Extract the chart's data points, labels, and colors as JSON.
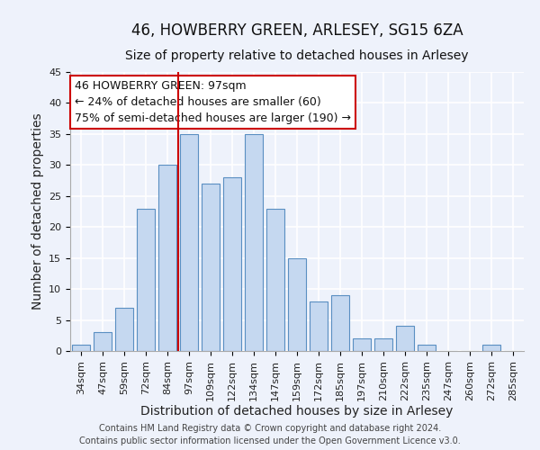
{
  "title": "46, HOWBERRY GREEN, ARLESEY, SG15 6ZA",
  "subtitle": "Size of property relative to detached houses in Arlesey",
  "xlabel": "Distribution of detached houses by size in Arlesey",
  "ylabel": "Number of detached properties",
  "bar_labels": [
    "34sqm",
    "47sqm",
    "59sqm",
    "72sqm",
    "84sqm",
    "97sqm",
    "109sqm",
    "122sqm",
    "134sqm",
    "147sqm",
    "159sqm",
    "172sqm",
    "185sqm",
    "197sqm",
    "210sqm",
    "222sqm",
    "235sqm",
    "247sqm",
    "260sqm",
    "272sqm",
    "285sqm"
  ],
  "bar_values": [
    1,
    3,
    7,
    23,
    30,
    35,
    27,
    28,
    35,
    23,
    15,
    8,
    9,
    2,
    2,
    4,
    1,
    0,
    0,
    1,
    0
  ],
  "bar_color": "#c5d8f0",
  "bar_edge_color": "#5a8fc2",
  "vline_index": 5,
  "vline_color": "#cc0000",
  "ylim": [
    0,
    45
  ],
  "yticks": [
    0,
    5,
    10,
    15,
    20,
    25,
    30,
    35,
    40,
    45
  ],
  "annotation_title": "46 HOWBERRY GREEN: 97sqm",
  "annotation_line1": "← 24% of detached houses are smaller (60)",
  "annotation_line2": "75% of semi-detached houses are larger (190) →",
  "annotation_box_facecolor": "#ffffff",
  "annotation_box_edgecolor": "#cc0000",
  "footer_line1": "Contains HM Land Registry data © Crown copyright and database right 2024.",
  "footer_line2": "Contains public sector information licensed under the Open Government Licence v3.0.",
  "bg_color": "#eef2fb",
  "grid_color": "#ffffff",
  "title_fontsize": 12,
  "subtitle_fontsize": 10,
  "axis_label_fontsize": 10,
  "tick_fontsize": 8,
  "annotation_fontsize": 9,
  "footer_fontsize": 7
}
